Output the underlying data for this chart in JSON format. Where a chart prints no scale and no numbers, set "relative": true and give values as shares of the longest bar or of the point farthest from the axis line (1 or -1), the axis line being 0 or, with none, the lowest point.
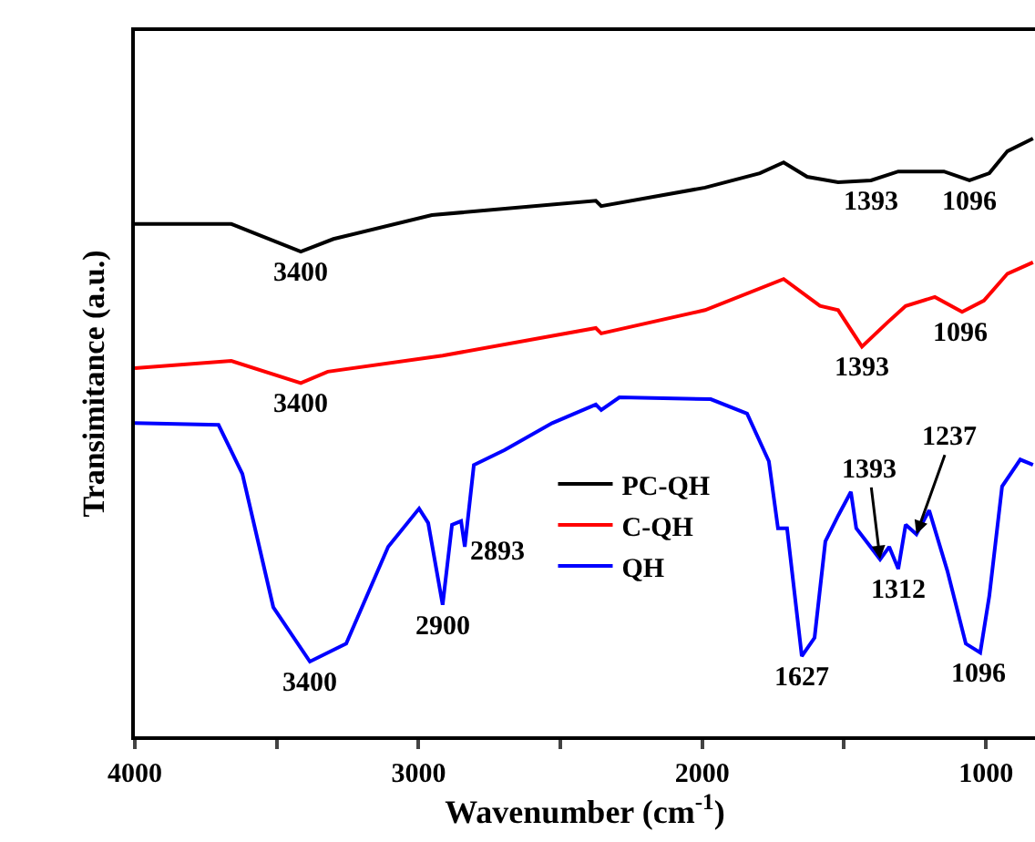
{
  "chart_data": {
    "type": "line",
    "relative": true,
    "xlabel": "Wavenumber (cm$^{-1}$)",
    "ylabel": "Transimitance (a.u.)",
    "xlim": [
      4000,
      827
    ],
    "xticks": [
      4000,
      {
        "value": 3500,
        "label": null
      },
      3000,
      {
        "value": 2500,
        "label": null
      },
      2000,
      {
        "value": 1500,
        "label": null
      },
      1000
    ],
    "legend": "center",
    "grid": false,
    "marker": "none",
    "line_style": "solid",
    "series": [
      {
        "name": "PC-QH",
        "color": "#000000",
        "x": [
          4000,
          3660,
          3415,
          3300,
          2953,
          2375,
          2356,
          1990,
          1797,
          1713,
          1630,
          1521,
          1405,
          1309,
          1148,
          1058,
          988,
          924,
          834
        ],
        "values": [
          0.857,
          0.857,
          0.811,
          0.832,
          0.872,
          0.896,
          0.887,
          0.918,
          0.942,
          0.96,
          0.936,
          0.927,
          0.93,
          0.945,
          0.945,
          0.93,
          0.942,
          0.979,
          1.0
        ]
      },
      {
        "name": "C-QH",
        "color": "#ff0000",
        "x": [
          4000,
          3660,
          3415,
          3320,
          2915,
          2375,
          2356,
          1990,
          1713,
          1585,
          1521,
          1437,
          1348,
          1283,
          1180,
          1084,
          1007,
          924,
          834
        ],
        "values": [
          0.616,
          0.628,
          0.591,
          0.61,
          0.637,
          0.683,
          0.674,
          0.713,
          0.765,
          0.72,
          0.713,
          0.652,
          0.692,
          0.72,
          0.735,
          0.71,
          0.729,
          0.774,
          0.793
        ]
      },
      {
        "name": "QH",
        "color": "#0000ff",
        "x": [
          4000,
          3705,
          3621,
          3512,
          3383,
          3255,
          3107,
          2998,
          2966,
          2915,
          2882,
          2850,
          2837,
          2805,
          2696,
          2529,
          2375,
          2356,
          2292,
          1970,
          1842,
          1765,
          1733,
          1701,
          1649,
          1604,
          1566,
          1521,
          1476,
          1457,
          1373,
          1341,
          1309,
          1283,
          1245,
          1200,
          1136,
          1071,
          1020,
          988,
          943,
          879,
          834
        ],
        "values": [
          0.524,
          0.521,
          0.439,
          0.216,
          0.125,
          0.155,
          0.317,
          0.381,
          0.357,
          0.22,
          0.354,
          0.36,
          0.317,
          0.454,
          0.479,
          0.524,
          0.555,
          0.546,
          0.567,
          0.564,
          0.54,
          0.46,
          0.348,
          0.348,
          0.134,
          0.165,
          0.326,
          0.369,
          0.409,
          0.348,
          0.296,
          0.317,
          0.28,
          0.354,
          0.338,
          0.378,
          0.277,
          0.155,
          0.14,
          0.235,
          0.418,
          0.463,
          0.454
        ]
      }
    ],
    "annotations": [
      {
        "text": "3400",
        "x": 3415,
        "y": 0.811
      },
      {
        "text": "1393",
        "x": 1405,
        "y": 0.93
      },
      {
        "text": "1096",
        "x": 1058,
        "y": 0.93
      },
      {
        "text": "3400",
        "x": 3415,
        "y": 0.591
      },
      {
        "text": "1393",
        "x": 1437,
        "y": 0.652
      },
      {
        "text": "1096",
        "x": 1084,
        "y": 0.71
      },
      {
        "text": "3400",
        "x": 3383,
        "y": 0.125
      },
      {
        "text": "2900",
        "x": 2915,
        "y": 0.22
      },
      {
        "text": "2893",
        "x": 2837,
        "y": 0.317
      },
      {
        "text": "1393",
        "x": 1373,
        "y": 0.296
      },
      {
        "text": "1237",
        "x": 1245,
        "y": 0.338
      },
      {
        "text": "1627",
        "x": 1649,
        "y": 0.134
      },
      {
        "text": "1312",
        "x": 1309,
        "y": 0.28
      },
      {
        "text": "1096",
        "x": 1020,
        "y": 0.14
      }
    ]
  }
}
